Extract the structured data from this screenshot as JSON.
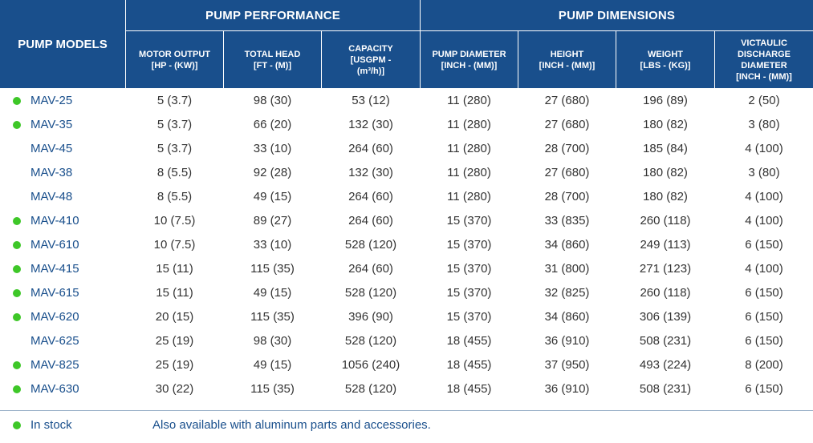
{
  "header": {
    "models_label": "PUMP MODELS",
    "performance_label": "PUMP PERFORMANCE",
    "dimensions_label": "PUMP DIMENSIONS",
    "columns": [
      "MOTOR OUTPUT\n[HP - (KW)]",
      "TOTAL HEAD\n[FT - (M)]",
      "CAPACITY\n[USGPM -\n(m³/h)]",
      "PUMP DIAMETER\n[INCH - (MM)]",
      "HEIGHT\n[INCH - (MM)]",
      "WEIGHT\n[LBS - (KG)]",
      "VICTAULIC\nDISCHARGE\nDIAMETER\n[INCH - (MM)]"
    ]
  },
  "rows": [
    {
      "model": "MAV-25",
      "in_stock": true,
      "values": [
        "5 (3.7)",
        "98 (30)",
        "53 (12)",
        "11 (280)",
        "27 (680)",
        "196 (89)",
        "2 (50)"
      ]
    },
    {
      "model": "MAV-35",
      "in_stock": true,
      "values": [
        "5 (3.7)",
        "66 (20)",
        "132 (30)",
        "11 (280)",
        "27 (680)",
        "180 (82)",
        "3 (80)"
      ]
    },
    {
      "model": "MAV-45",
      "in_stock": false,
      "values": [
        "5 (3.7)",
        "33 (10)",
        "264 (60)",
        "11 (280)",
        "28 (700)",
        "185 (84)",
        "4 (100)"
      ]
    },
    {
      "model": "MAV-38",
      "in_stock": false,
      "values": [
        "8 (5.5)",
        "92 (28)",
        "132 (30)",
        "11 (280)",
        "27 (680)",
        "180 (82)",
        "3 (80)"
      ]
    },
    {
      "model": "MAV-48",
      "in_stock": false,
      "values": [
        "8 (5.5)",
        "49 (15)",
        "264 (60)",
        "11 (280)",
        "28 (700)",
        "180 (82)",
        "4 (100)"
      ]
    },
    {
      "model": "MAV-410",
      "in_stock": true,
      "values": [
        "10 (7.5)",
        "89 (27)",
        "264 (60)",
        "15 (370)",
        "33 (835)",
        "260 (118)",
        "4 (100)"
      ]
    },
    {
      "model": "MAV-610",
      "in_stock": true,
      "values": [
        "10 (7.5)",
        "33 (10)",
        "528 (120)",
        "15 (370)",
        "34 (860)",
        "249 (113)",
        "6 (150)"
      ]
    },
    {
      "model": "MAV-415",
      "in_stock": true,
      "values": [
        "15 (11)",
        "115 (35)",
        "264 (60)",
        "15 (370)",
        "31 (800)",
        "271 (123)",
        "4 (100)"
      ]
    },
    {
      "model": "MAV-615",
      "in_stock": true,
      "values": [
        "15 (11)",
        "49 (15)",
        "528 (120)",
        "15 (370)",
        "32 (825)",
        "260 (118)",
        "6 (150)"
      ]
    },
    {
      "model": "MAV-620",
      "in_stock": true,
      "values": [
        "20 (15)",
        "115 (35)",
        "396 (90)",
        "15 (370)",
        "34 (860)",
        "306 (139)",
        "6 (150)"
      ]
    },
    {
      "model": "MAV-625",
      "in_stock": false,
      "values": [
        "25 (19)",
        "98 (30)",
        "528 (120)",
        "18 (455)",
        "36 (910)",
        "508 (231)",
        "6 (150)"
      ]
    },
    {
      "model": "MAV-825",
      "in_stock": true,
      "values": [
        "25 (19)",
        "49 (15)",
        "1056 (240)",
        "18 (455)",
        "37 (950)",
        "493 (224)",
        "8 (200)"
      ]
    },
    {
      "model": "MAV-630",
      "in_stock": true,
      "values": [
        "30 (22)",
        "115 (35)",
        "528 (120)",
        "18 (455)",
        "36 (910)",
        "508 (231)",
        "6 (150)"
      ]
    }
  ],
  "footer": {
    "legend_label": "In stock",
    "note": "Also available with aluminum parts and accessories."
  },
  "colors": {
    "header_bg": "#194f8c",
    "model_text": "#194f8c",
    "stock_dot": "#3ec728",
    "value_text": "#333333"
  }
}
